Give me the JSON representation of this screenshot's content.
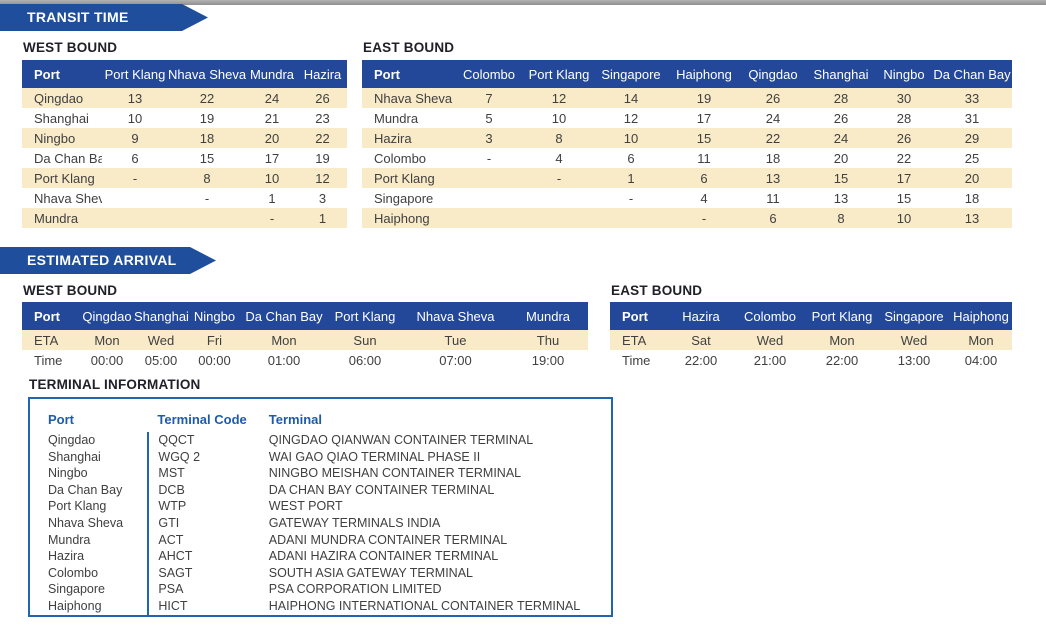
{
  "colors": {
    "banner_blue": "#1e4e9c",
    "header_blue": "#23489a",
    "stripe_cream": "#faebc8",
    "text_dark": "#404040",
    "heading_dark": "#20202a",
    "terminal_blue": "#1f5ba9",
    "border_blue": "#2065ae",
    "top_bar_gray": "#9d9d9d"
  },
  "banners": {
    "transit_time": "TRANSIT TIME",
    "estimated_arrival": "ESTIMATED ARRIVAL"
  },
  "transit_time": {
    "west_bound": {
      "title": "WEST BOUND",
      "columns": [
        "Port",
        "Port Klang",
        "Nhava Sheva",
        "Mundra",
        "Hazira"
      ],
      "rows": [
        {
          "port": "Qingdao",
          "values": [
            "13",
            "22",
            "24",
            "26"
          ]
        },
        {
          "port": "Shanghai",
          "values": [
            "10",
            "19",
            "21",
            "23"
          ]
        },
        {
          "port": "Ningbo",
          "values": [
            "9",
            "18",
            "20",
            "22"
          ]
        },
        {
          "port": "Da Chan Bay",
          "values": [
            "6",
            "15",
            "17",
            "19"
          ]
        },
        {
          "port": "Port Klang",
          "values": [
            "-",
            "8",
            "10",
            "12"
          ]
        },
        {
          "port": "Nhava Sheva",
          "values": [
            "",
            "-",
            "1",
            "3"
          ]
        },
        {
          "port": "Mundra",
          "values": [
            "",
            "",
            "-",
            "1"
          ]
        }
      ]
    },
    "east_bound": {
      "title": "EAST BOUND",
      "columns": [
        "Port",
        "Colombo",
        "Port Klang",
        "Singapore",
        "Haiphong",
        "Qingdao",
        "Shanghai",
        "Ningbo",
        "Da Chan Bay"
      ],
      "rows": [
        {
          "port": "Nhava Sheva",
          "values": [
            "7",
            "12",
            "14",
            "19",
            "26",
            "28",
            "30",
            "33"
          ]
        },
        {
          "port": "Mundra",
          "values": [
            "5",
            "10",
            "12",
            "17",
            "24",
            "26",
            "28",
            "31"
          ]
        },
        {
          "port": "Hazira",
          "values": [
            "3",
            "8",
            "10",
            "15",
            "22",
            "24",
            "26",
            "29"
          ]
        },
        {
          "port": "Colombo",
          "values": [
            "-",
            "4",
            "6",
            "11",
            "18",
            "20",
            "22",
            "25"
          ]
        },
        {
          "port": "Port Klang",
          "values": [
            "",
            "-",
            "1",
            "6",
            "13",
            "15",
            "17",
            "20"
          ]
        },
        {
          "port": "Singapore",
          "values": [
            "",
            "",
            "-",
            "4",
            "11",
            "13",
            "15",
            "18"
          ]
        },
        {
          "port": "Haiphong",
          "values": [
            "",
            "",
            "",
            "-",
            "6",
            "8",
            "10",
            "13"
          ]
        }
      ]
    }
  },
  "estimated_arrival": {
    "west_bound": {
      "title": "WEST BOUND",
      "columns": [
        "Port",
        "Qingdao",
        "Shanghai",
        "Ningbo",
        "Da Chan Bay",
        "Port Klang",
        "Nhava Sheva",
        "Mundra"
      ],
      "rows": [
        {
          "label": "ETA",
          "values": [
            "Mon",
            "Wed",
            "Fri",
            "Mon",
            "Sun",
            "Tue",
            "Thu"
          ]
        },
        {
          "label": "Time",
          "values": [
            "00:00",
            "05:00",
            "00:00",
            "01:00",
            "06:00",
            "07:00",
            "19:00"
          ]
        }
      ]
    },
    "east_bound": {
      "title": "EAST BOUND",
      "columns": [
        "Port",
        "Hazira",
        "Colombo",
        "Port Klang",
        "Singapore",
        "Haiphong"
      ],
      "rows": [
        {
          "label": "ETA",
          "values": [
            "Sat",
            "Wed",
            "Mon",
            "Wed",
            "Mon"
          ]
        },
        {
          "label": "Time",
          "values": [
            "22:00",
            "21:00",
            "22:00",
            "13:00",
            "04:00"
          ]
        }
      ]
    }
  },
  "terminal_information": {
    "title": "TERMINAL INFORMATION",
    "columns": [
      "Port",
      "Terminal Code",
      "Terminal"
    ],
    "rows": [
      {
        "port": "Qingdao",
        "code": "QQCT",
        "terminal": "QINGDAO QIANWAN CONTAINER TERMINAL"
      },
      {
        "port": "Shanghai",
        "code": "WGQ 2",
        "terminal": "WAI GAO QIAO TERMINAL PHASE II"
      },
      {
        "port": "Ningbo",
        "code": "MST",
        "terminal": "NINGBO MEISHAN CONTAINER TERMINAL"
      },
      {
        "port": "Da Chan Bay",
        "code": "DCB",
        "terminal": "DA CHAN BAY CONTAINER TERMINAL"
      },
      {
        "port": "Port Klang",
        "code": "WTP",
        "terminal": "WEST PORT"
      },
      {
        "port": "Nhava Sheva",
        "code": "GTI",
        "terminal": "GATEWAY TERMINALS INDIA"
      },
      {
        "port": "Mundra",
        "code": "ACT",
        "terminal": "ADANI MUNDRA CONTAINER TERMINAL"
      },
      {
        "port": "Hazira",
        "code": "AHCT",
        "terminal": "ADANI HAZIRA CONTAINER TERMINAL"
      },
      {
        "port": "Colombo",
        "code": "SAGT",
        "terminal": "SOUTH ASIA GATEWAY TERMINAL"
      },
      {
        "port": "Singapore",
        "code": "PSA",
        "terminal": "PSA CORPORATION LIMITED"
      },
      {
        "port": "Haiphong",
        "code": "HICT",
        "terminal": "HAIPHONG INTERNATIONAL CONTAINER TERMINAL"
      }
    ]
  }
}
